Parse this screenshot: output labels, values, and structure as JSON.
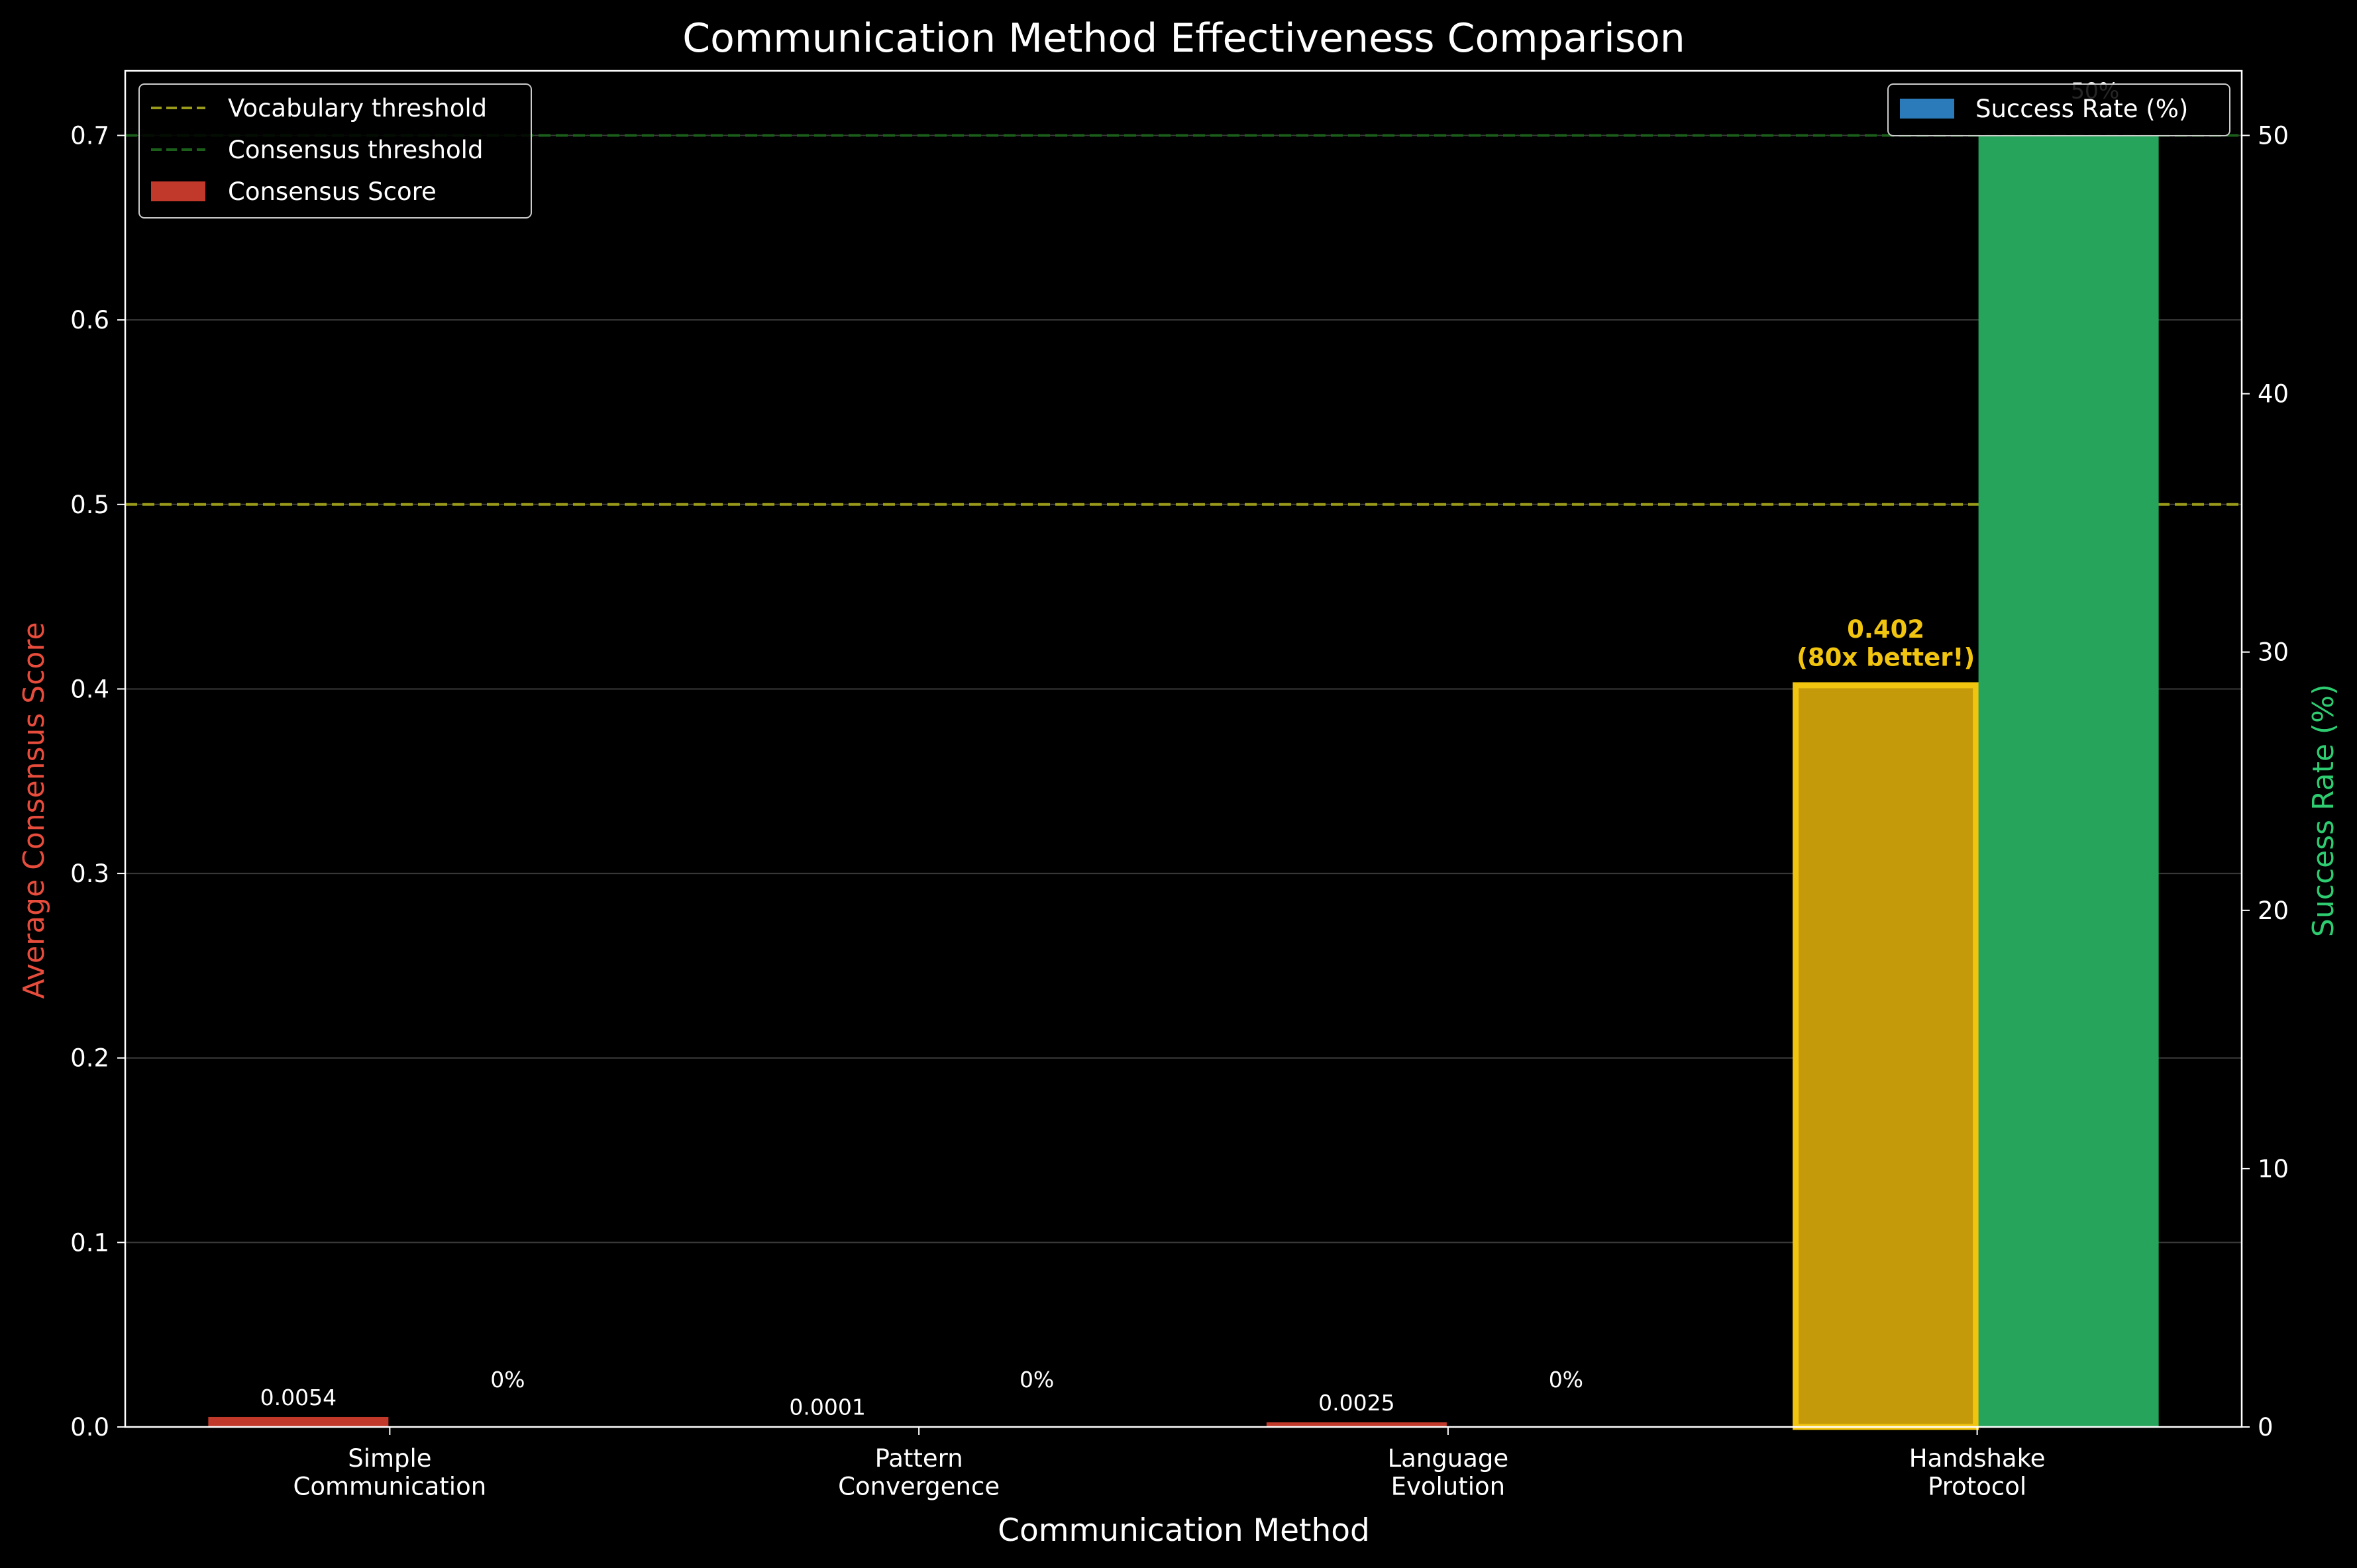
{
  "chart_data": {
    "type": "bar",
    "title": "Communication Method Effectiveness Comparison",
    "xlabel": "Communication Method",
    "categories": [
      "Simple\nCommunication",
      "Pattern\nConvergence",
      "Language\nEvolution",
      "Handshake\nProtocol"
    ],
    "left_axis": {
      "label": "Average Consensus Score",
      "label_color": "#e74c3c",
      "ylim": [
        0,
        0.735
      ],
      "ticks": [
        "0.0",
        "0.1",
        "0.2",
        "0.3",
        "0.4",
        "0.5",
        "0.6",
        "0.7"
      ]
    },
    "right_axis": {
      "label": "Success Rate (%)",
      "label_color": "#2ecc71",
      "ylim": [
        0,
        52.5
      ],
      "ticks": [
        "0",
        "10",
        "20",
        "30",
        "40",
        "50"
      ]
    },
    "series": [
      {
        "name": "Consensus Score",
        "axis": "left",
        "color": "#c0392b",
        "highlight_color": "#c49a0a",
        "values": [
          0.0054,
          0.0001,
          0.0025,
          0.402
        ],
        "labels": [
          "0.0054",
          "0.0001",
          "0.0025",
          "0.402\n(80x better!)"
        ]
      },
      {
        "name": "Success Rate (%)",
        "axis": "right",
        "color": "#27a45b",
        "legend_color": "#2b7bba",
        "values": [
          0,
          0,
          0,
          50
        ],
        "labels": [
          "0%",
          "0%",
          "0%",
          "50%"
        ]
      }
    ],
    "thresholds": [
      {
        "name": "Vocabulary threshold",
        "value": 0.5,
        "color": "#9a9a1a"
      },
      {
        "name": "Consensus threshold",
        "value": 0.7,
        "color": "#1a5e1a"
      }
    ],
    "grid": true,
    "legend_left_position": "top-left",
    "legend_right_position": "top-right"
  }
}
